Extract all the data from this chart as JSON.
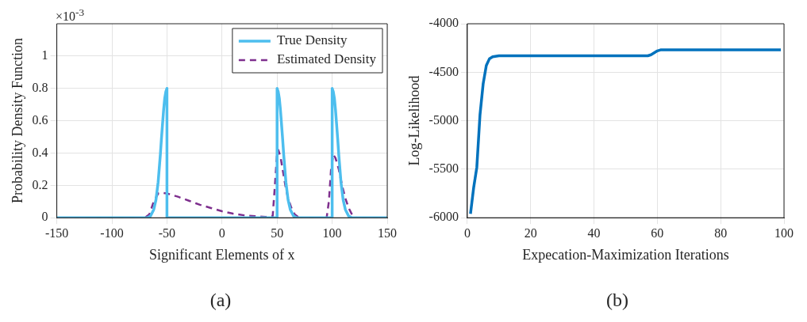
{
  "chart_data": [
    {
      "type": "line",
      "xlabel": "Significant Elements of x",
      "ylabel": "Probability Density Function",
      "xlim": [
        -150,
        150
      ],
      "xticks": [
        -150,
        -100,
        -50,
        0,
        50,
        100,
        150
      ],
      "ylim": [
        0,
        1.2
      ],
      "yticks": [
        0,
        0.2,
        0.4,
        0.6,
        0.8,
        1
      ],
      "grid": true,
      "legend": "top right",
      "marker": "none",
      "annotations": [
        "×10$^{-3}$",
        "(a)"
      ],
      "series": [
        {
          "name": "True Density",
          "color": "#4dbeee",
          "line_style": "solid",
          "x": [
            -150,
            -68,
            -65,
            -62,
            -60,
            -58,
            -56,
            -55,
            -54,
            -53,
            -52,
            -51,
            -50,
            -50,
            50,
            50,
            51,
            52,
            53,
            54,
            55,
            56,
            58,
            60,
            62,
            65,
            68,
            100,
            100,
            101,
            102,
            103,
            104,
            105,
            106,
            108,
            110,
            112,
            115,
            118,
            150
          ],
          "values": [
            0,
            0,
            0.01,
            0.05,
            0.11,
            0.22,
            0.39,
            0.49,
            0.58,
            0.67,
            0.74,
            0.78,
            0.8,
            0,
            0,
            0.8,
            0.78,
            0.74,
            0.67,
            0.58,
            0.49,
            0.39,
            0.22,
            0.11,
            0.05,
            0.01,
            0,
            0,
            0.8,
            0.78,
            0.74,
            0.67,
            0.58,
            0.49,
            0.39,
            0.22,
            0.11,
            0.05,
            0.01,
            0,
            0
          ]
        },
        {
          "name": "Estimated Density",
          "color": "#7e2f8e",
          "line_style": "dashed",
          "x": [
            -150,
            -70,
            -66,
            -62,
            -58,
            -55,
            -50,
            -40,
            -30,
            -20,
            -10,
            0,
            10,
            20,
            30,
            40,
            46,
            48,
            50,
            51,
            53,
            55,
            58,
            60,
            63,
            66,
            70,
            95,
            97,
            99,
            101,
            103,
            106,
            109,
            112,
            115,
            118,
            122,
            150
          ],
          "values": [
            0,
            0,
            0.02,
            0.1,
            0.15,
            0.155,
            0.15,
            0.13,
            0.105,
            0.08,
            0.06,
            0.04,
            0.025,
            0.015,
            0.01,
            0.005,
            0.01,
            0.2,
            0.4,
            0.42,
            0.38,
            0.3,
            0.18,
            0.12,
            0.06,
            0.02,
            0,
            0,
            0.1,
            0.3,
            0.39,
            0.37,
            0.3,
            0.2,
            0.12,
            0.06,
            0.02,
            0,
            0
          ]
        }
      ]
    },
    {
      "type": "line",
      "xlabel": "Expecation-Maximization Iterations",
      "ylabel": "Log-Likelihood",
      "xlim": [
        0,
        100
      ],
      "xticks": [
        0,
        20,
        40,
        60,
        80,
        100
      ],
      "ylim": [
        -6000,
        -4000
      ],
      "yticks": [
        -6000,
        -5500,
        -5000,
        -4500,
        -4000
      ],
      "grid": true,
      "marker": "none",
      "annotations": [
        "(b)"
      ],
      "series": [
        {
          "color": "#0072bd",
          "line_style": "solid",
          "x": [
            1,
            2,
            3,
            4,
            5,
            6,
            7,
            8,
            10,
            20,
            40,
            57,
            58,
            59,
            60,
            61,
            62,
            80,
            99
          ],
          "values": [
            -5960,
            -5690,
            -5480,
            -4940,
            -4620,
            -4430,
            -4360,
            -4340,
            -4330,
            -4330,
            -4330,
            -4330,
            -4320,
            -4300,
            -4280,
            -4270,
            -4270,
            -4270,
            -4270
          ]
        }
      ]
    }
  ]
}
